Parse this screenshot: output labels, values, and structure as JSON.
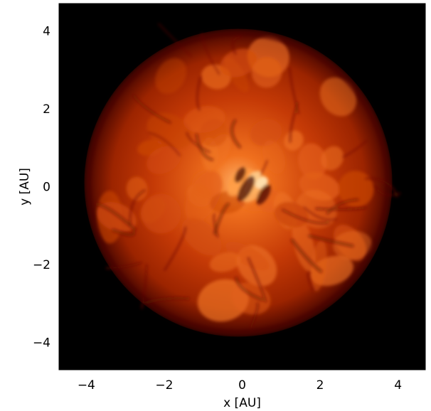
{
  "figure": {
    "xlabel": "x [AU]",
    "ylabel": "y [AU]",
    "x_range": [
      -4.7,
      4.7
    ],
    "y_range": [
      -4.7,
      4.7
    ],
    "x_ticks": [
      -4,
      -2,
      0,
      2,
      4
    ],
    "y_ticks": [
      -4,
      -2,
      0,
      2,
      4
    ],
    "x_tick_labels": [
      "−4",
      "−2",
      "0",
      "2",
      "4"
    ],
    "y_tick_labels": [
      "−4",
      "−2",
      "0",
      "2",
      "4"
    ],
    "colors": {
      "background": "#000000",
      "star_edge": "#5a0800",
      "star_mid": "#b32a00",
      "star_bright": "#e85a10",
      "star_core": "#ffd6a0"
    },
    "star": {
      "center_au": [
        -0.1,
        0.1
      ],
      "radius_au": 3.95
    }
  }
}
